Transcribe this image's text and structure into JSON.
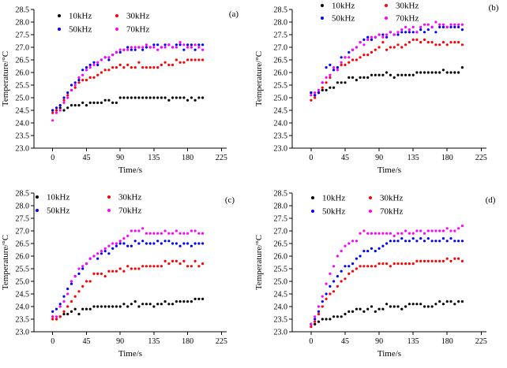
{
  "figure": {
    "background": "#ffffff",
    "description": "2x2 grid of scatter plots of temperature rise vs time at four excitation frequencies"
  },
  "series_colors": {
    "10kHz": "#000000",
    "30kHz": "#ff0000",
    "50kHz": "#0000ff",
    "70kHz": "#ff00ff"
  },
  "chart_data": [
    {
      "type": "scatter",
      "panel_label": "(a)",
      "xlabel": "Time/s",
      "ylabel": "Temperature/°C",
      "xlim": [
        -25,
        232
      ],
      "ylim": [
        23.0,
        28.5
      ],
      "xticks": [
        0,
        45,
        90,
        135,
        180,
        225
      ],
      "yticks": [
        23.0,
        23.5,
        24.0,
        24.5,
        25.0,
        25.5,
        26.0,
        26.5,
        27.0,
        27.5,
        28.0,
        28.5
      ],
      "grid": false,
      "legend": {
        "position": "upper-left",
        "order": [
          [
            "10kHz",
            "30kHz"
          ],
          [
            "50kHz",
            "70kHz"
          ]
        ],
        "cols": [
          75,
          148
        ],
        "rows": [
          20,
          37
        ]
      },
      "panel_pos": {
        "x": 296,
        "y": 21
      },
      "x": [
        0,
        5,
        10,
        15,
        20,
        25,
        30,
        35,
        40,
        45,
        50,
        55,
        60,
        65,
        70,
        75,
        80,
        85,
        90,
        95,
        100,
        105,
        110,
        115,
        120,
        125,
        130,
        135,
        140,
        145,
        150,
        155,
        160,
        165,
        170,
        175,
        180,
        185,
        190,
        195,
        200
      ],
      "series": [
        {
          "name": "10kHz",
          "color": "#000000",
          "values": [
            24.5,
            24.5,
            24.6,
            24.5,
            24.6,
            24.7,
            24.7,
            24.7,
            24.8,
            24.7,
            24.8,
            24.8,
            24.8,
            24.8,
            24.9,
            24.9,
            24.8,
            24.8,
            25.0,
            25.0,
            25.0,
            25.0,
            25.0,
            25.0,
            25.0,
            25.0,
            25.0,
            25.0,
            25.0,
            25.0,
            25.0,
            24.9,
            25.0,
            25.0,
            25.0,
            25.0,
            24.9,
            25.0,
            24.9,
            25.0,
            25.0
          ]
        },
        {
          "name": "30kHz",
          "color": "#ff0000",
          "values": [
            24.4,
            24.5,
            24.7,
            24.9,
            25.1,
            25.3,
            25.4,
            25.6,
            25.7,
            25.7,
            25.8,
            25.8,
            25.9,
            26.0,
            26.1,
            26.1,
            26.2,
            26.2,
            26.3,
            26.2,
            26.3,
            26.2,
            26.2,
            26.4,
            26.2,
            26.2,
            26.2,
            26.2,
            26.2,
            26.3,
            26.4,
            26.3,
            26.3,
            26.5,
            26.4,
            26.4,
            26.5,
            26.5,
            26.5,
            26.5,
            26.5
          ]
        },
        {
          "name": "50kHz",
          "color": "#0000ff",
          "values": [
            24.5,
            24.6,
            24.7,
            25.0,
            25.2,
            25.5,
            25.6,
            25.7,
            26.1,
            26.2,
            26.3,
            26.4,
            26.3,
            26.5,
            26.6,
            26.5,
            26.7,
            26.8,
            26.8,
            26.9,
            27.0,
            26.9,
            26.9,
            27.0,
            26.9,
            27.0,
            27.0,
            27.1,
            27.1,
            27.0,
            27.1,
            27.1,
            27.0,
            27.1,
            27.1,
            26.9,
            27.1,
            27.1,
            26.9,
            27.1,
            27.1
          ]
        },
        {
          "name": "70kHz",
          "color": "#ff00ff",
          "values": [
            24.1,
            24.4,
            24.5,
            24.8,
            25.0,
            25.3,
            25.5,
            25.8,
            25.9,
            26.1,
            26.2,
            26.3,
            26.4,
            26.5,
            26.6,
            26.6,
            26.7,
            26.8,
            26.9,
            26.9,
            26.9,
            27.0,
            27.0,
            27.0,
            27.0,
            27.1,
            27.0,
            27.0,
            26.9,
            27.0,
            27.0,
            27.1,
            27.0,
            27.0,
            27.2,
            27.1,
            27.0,
            27.0,
            27.1,
            27.0,
            26.9
          ]
        }
      ]
    },
    {
      "type": "scatter",
      "panel_label": "(b)",
      "xlabel": "Time/s",
      "ylabel": "Temperature/°C",
      "xlim": [
        -25,
        232
      ],
      "ylim": [
        23.0,
        28.5
      ],
      "xticks": [
        0,
        45,
        90,
        135,
        180,
        225
      ],
      "yticks": [
        23.0,
        23.5,
        24.0,
        24.5,
        25.0,
        25.5,
        26.0,
        26.5,
        27.0,
        27.5,
        28.0,
        28.5
      ],
      "grid": false,
      "legend": {
        "position": "upper-left",
        "order": [
          [
            "10kHz",
            "30kHz"
          ],
          [
            "50kHz",
            "70kHz"
          ]
        ],
        "cols": [
          87,
          168
        ],
        "rows": [
          7,
          23
        ]
      },
      "panel_pos": {
        "x": 304,
        "y": 13
      },
      "x": [
        0,
        5,
        10,
        15,
        20,
        25,
        30,
        35,
        40,
        45,
        50,
        55,
        60,
        65,
        70,
        75,
        80,
        85,
        90,
        95,
        100,
        105,
        110,
        115,
        120,
        125,
        130,
        135,
        140,
        145,
        150,
        155,
        160,
        165,
        170,
        175,
        180,
        185,
        190,
        195,
        200
      ],
      "series": [
        {
          "name": "10kHz",
          "color": "#000000",
          "values": [
            25.2,
            25.1,
            25.2,
            25.3,
            25.3,
            25.4,
            25.4,
            25.6,
            25.6,
            25.6,
            25.8,
            25.8,
            25.7,
            25.8,
            25.8,
            25.8,
            25.9,
            25.9,
            25.9,
            25.9,
            26.0,
            25.9,
            25.8,
            25.9,
            25.9,
            25.9,
            25.9,
            25.9,
            26.0,
            26.0,
            26.0,
            26.0,
            26.0,
            26.0,
            26.0,
            26.1,
            26.0,
            26.0,
            26.0,
            26.0,
            26.2
          ]
        },
        {
          "name": "30kHz",
          "color": "#ff0000",
          "values": [
            24.9,
            25.0,
            25.2,
            25.4,
            25.6,
            25.8,
            26.1,
            26.2,
            26.3,
            26.3,
            26.4,
            26.5,
            26.5,
            26.6,
            26.7,
            26.7,
            26.8,
            26.9,
            27.0,
            27.2,
            26.9,
            27.0,
            27.0,
            27.1,
            27.0,
            27.1,
            27.2,
            27.3,
            27.3,
            27.2,
            27.3,
            27.2,
            27.2,
            27.1,
            27.1,
            27.2,
            27.1,
            27.2,
            27.2,
            27.2,
            27.1
          ]
        },
        {
          "name": "50kHz",
          "color": "#0000ff",
          "values": [
            25.2,
            25.1,
            25.2,
            25.6,
            26.2,
            26.3,
            26.1,
            26.2,
            26.6,
            26.6,
            26.8,
            26.9,
            27.0,
            27.2,
            27.3,
            27.4,
            27.3,
            27.4,
            27.5,
            27.5,
            27.4,
            27.6,
            27.5,
            27.5,
            27.6,
            27.6,
            27.6,
            27.6,
            27.6,
            27.7,
            27.6,
            27.7,
            27.8,
            27.6,
            27.8,
            27.8,
            27.8,
            27.8,
            27.8,
            27.8,
            27.7
          ]
        },
        {
          "name": "70kHz",
          "color": "#ff00ff",
          "values": [
            25.1,
            25.2,
            25.3,
            25.6,
            25.8,
            25.9,
            26.2,
            26.1,
            26.4,
            26.6,
            26.6,
            26.9,
            27.0,
            27.2,
            27.1,
            27.3,
            27.4,
            27.4,
            27.5,
            27.4,
            27.5,
            27.6,
            27.5,
            27.6,
            27.7,
            27.8,
            27.7,
            27.8,
            27.6,
            27.8,
            27.9,
            27.9,
            27.8,
            28.0,
            27.9,
            27.9,
            27.8,
            27.9,
            27.9,
            27.9,
            27.9
          ]
        }
      ]
    },
    {
      "type": "scatter",
      "panel_label": "(c)",
      "xlabel": "Time/s",
      "ylabel": "Temperature/°C",
      "xlim": [
        -25,
        232
      ],
      "ylim": [
        23.0,
        28.5
      ],
      "xticks": [
        0,
        45,
        90,
        135,
        180,
        225
      ],
      "yticks": [
        23.0,
        23.5,
        24.0,
        24.5,
        25.0,
        25.5,
        26.0,
        26.5,
        27.0,
        27.5,
        28.0,
        28.5
      ],
      "grid": false,
      "legend": {
        "position": "upper-left",
        "order": [
          [
            "10kHz",
            "30kHz"
          ],
          [
            "50kHz",
            "70kHz"
          ]
        ],
        "cols": [
          47,
          138
        ],
        "rows": [
          17,
          34
        ]
      },
      "panel_pos": {
        "x": 291,
        "y": 24
      },
      "x": [
        0,
        5,
        10,
        15,
        20,
        25,
        30,
        35,
        40,
        45,
        50,
        55,
        60,
        65,
        70,
        75,
        80,
        85,
        90,
        95,
        100,
        105,
        110,
        115,
        120,
        125,
        130,
        135,
        140,
        145,
        150,
        155,
        160,
        165,
        170,
        175,
        180,
        185,
        190,
        195,
        200
      ],
      "series": [
        {
          "name": "10kHz",
          "color": "#000000",
          "values": [
            23.6,
            23.5,
            23.6,
            23.7,
            23.7,
            23.8,
            23.9,
            23.7,
            23.9,
            23.9,
            23.9,
            24.0,
            24.0,
            24.0,
            24.0,
            24.0,
            24.0,
            24.0,
            24.0,
            24.1,
            24.0,
            24.1,
            24.2,
            24.0,
            24.1,
            24.1,
            24.1,
            24.0,
            24.1,
            24.1,
            24.2,
            24.1,
            24.1,
            24.2,
            24.2,
            24.2,
            24.2,
            24.2,
            24.3,
            24.3,
            24.3
          ]
        },
        {
          "name": "30kHz",
          "color": "#ff0000",
          "values": [
            23.5,
            23.5,
            23.6,
            23.8,
            24.0,
            24.2,
            24.4,
            24.6,
            24.8,
            25.0,
            25.0,
            25.3,
            25.3,
            25.3,
            25.2,
            25.4,
            25.4,
            25.4,
            25.5,
            25.4,
            25.6,
            25.5,
            25.5,
            25.5,
            25.6,
            25.6,
            25.6,
            25.6,
            25.6,
            25.6,
            25.8,
            25.7,
            25.8,
            25.8,
            25.7,
            25.8,
            25.6,
            25.6,
            25.8,
            25.6,
            25.7
          ]
        },
        {
          "name": "50kHz",
          "color": "#0000ff",
          "values": [
            23.8,
            23.9,
            24.1,
            24.4,
            24.7,
            24.9,
            25.2,
            25.3,
            25.5,
            25.7,
            25.9,
            26.0,
            25.9,
            26.1,
            26.2,
            26.1,
            26.3,
            26.4,
            26.5,
            26.5,
            26.4,
            26.4,
            26.6,
            26.5,
            26.6,
            26.5,
            26.5,
            26.5,
            26.6,
            26.5,
            26.6,
            26.6,
            26.5,
            26.5,
            26.4,
            26.5,
            26.5,
            26.4,
            26.5,
            26.5,
            26.5
          ]
        },
        {
          "name": "70kHz",
          "color": "#ff00ff",
          "values": [
            23.6,
            23.6,
            24.0,
            24.2,
            24.5,
            25.0,
            25.2,
            25.5,
            25.6,
            25.7,
            25.9,
            26.0,
            26.1,
            26.2,
            26.3,
            26.4,
            26.5,
            26.5,
            26.6,
            26.7,
            26.8,
            27.0,
            27.0,
            27.0,
            27.1,
            26.9,
            26.9,
            26.9,
            26.9,
            26.9,
            27.0,
            26.9,
            26.9,
            27.0,
            26.9,
            26.9,
            26.9,
            27.0,
            27.0,
            26.9,
            26.9
          ]
        }
      ]
    },
    {
      "type": "scatter",
      "panel_label": "(d)",
      "xlabel": "Time/s",
      "ylabel": "Temperature/°C",
      "xlim": [
        -25,
        232
      ],
      "ylim": [
        23.0,
        28.5
      ],
      "xticks": [
        0,
        45,
        90,
        135,
        180,
        225
      ],
      "yticks": [
        23.0,
        23.5,
        24.0,
        24.5,
        25.0,
        25.5,
        26.0,
        26.5,
        27.0,
        27.5,
        28.0,
        28.5
      ],
      "grid": false,
      "legend": {
        "position": "upper-left",
        "order": [
          [
            "10kHz",
            "30kHz"
          ],
          [
            "50kHz",
            "70kHz"
          ]
        ],
        "cols": [
          75,
          148
        ],
        "rows": [
          18,
          35
        ]
      },
      "panel_pos": {
        "x": 300,
        "y": 24
      },
      "x": [
        0,
        5,
        10,
        15,
        20,
        25,
        30,
        35,
        40,
        45,
        50,
        55,
        60,
        65,
        70,
        75,
        80,
        85,
        90,
        95,
        100,
        105,
        110,
        115,
        120,
        125,
        130,
        135,
        140,
        145,
        150,
        155,
        160,
        165,
        170,
        175,
        180,
        185,
        190,
        195,
        200
      ],
      "series": [
        {
          "name": "10kHz",
          "color": "#000000",
          "values": [
            23.3,
            23.3,
            23.4,
            23.5,
            23.5,
            23.5,
            23.6,
            23.6,
            23.6,
            23.7,
            23.8,
            23.8,
            23.9,
            23.9,
            23.8,
            23.9,
            24.0,
            23.8,
            23.9,
            23.9,
            24.1,
            24.0,
            24.0,
            24.0,
            23.9,
            24.0,
            24.1,
            24.1,
            24.1,
            24.1,
            24.0,
            24.0,
            24.0,
            24.1,
            24.2,
            24.1,
            24.2,
            24.2,
            24.1,
            24.2,
            24.2
          ]
        },
        {
          "name": "30kHz",
          "color": "#ff0000",
          "values": [
            23.2,
            23.4,
            23.7,
            24.0,
            24.3,
            24.5,
            24.6,
            24.8,
            25.0,
            25.1,
            25.3,
            25.4,
            25.5,
            25.6,
            25.6,
            25.6,
            25.6,
            25.6,
            25.7,
            25.7,
            25.7,
            25.6,
            25.7,
            25.7,
            25.7,
            25.7,
            25.7,
            25.7,
            25.8,
            25.8,
            25.8,
            25.8,
            25.8,
            25.8,
            25.8,
            25.8,
            25.9,
            25.8,
            25.9,
            25.9,
            25.8
          ]
        },
        {
          "name": "50kHz",
          "color": "#0000ff",
          "values": [
            23.3,
            23.5,
            23.8,
            24.2,
            24.5,
            24.8,
            25.0,
            25.2,
            25.4,
            25.6,
            25.6,
            25.7,
            25.9,
            26.0,
            26.2,
            26.2,
            26.3,
            26.2,
            26.3,
            26.4,
            26.5,
            26.6,
            26.6,
            26.6,
            26.7,
            26.6,
            26.6,
            26.7,
            26.6,
            26.7,
            26.6,
            26.7,
            26.6,
            26.6,
            26.6,
            26.7,
            26.6,
            26.7,
            26.6,
            26.6,
            26.6
          ]
        },
        {
          "name": "70kHz",
          "color": "#ff00ff",
          "values": [
            23.3,
            23.6,
            24.0,
            24.4,
            24.9,
            25.3,
            25.6,
            26.0,
            26.2,
            26.4,
            26.5,
            26.6,
            26.6,
            26.9,
            27.0,
            26.9,
            26.9,
            26.9,
            26.9,
            26.9,
            26.9,
            26.9,
            26.8,
            26.9,
            26.9,
            27.0,
            26.9,
            26.9,
            27.0,
            27.0,
            26.9,
            27.0,
            27.0,
            27.0,
            27.0,
            27.0,
            27.1,
            27.0,
            27.0,
            27.1,
            27.2
          ]
        }
      ]
    }
  ]
}
